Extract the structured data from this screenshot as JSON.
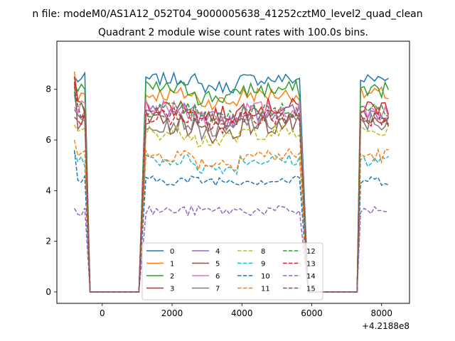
{
  "figure": {
    "suptitle": "n file: modeM0/AS1A12_052T04_9000005638_41252cztM0_level2_quad_clean"
  },
  "chart_data": {
    "type": "line",
    "title": "Quadrant 2 module wise count rates with 100.0s bins.",
    "xlabel": "",
    "ylabel": "",
    "x_offset_label": "+4.2188e8",
    "xlim": [
      -1300,
      8800
    ],
    "ylim": [
      -0.45,
      9.9
    ],
    "xticks": [
      0,
      2000,
      4000,
      6000,
      8000
    ],
    "xtick_labels": [
      "0",
      "2000",
      "4000",
      "6000",
      "8000"
    ],
    "yticks": [
      0,
      2,
      4,
      6,
      8
    ],
    "ytick_labels": [
      "0",
      "2",
      "4",
      "6",
      "8"
    ],
    "grid": false,
    "legend": {
      "location": "lower center",
      "ncol": 4
    },
    "series": [
      {
        "name": "0",
        "color": "#1f77b4",
        "linestyle": "solid",
        "level": 8.4,
        "amp": 0.25,
        "start": 8.5
      },
      {
        "name": "1",
        "color": "#ff7f0e",
        "linestyle": "solid",
        "level": 7.8,
        "amp": 0.3,
        "start": 8.7
      },
      {
        "name": "2",
        "color": "#2ca02c",
        "linestyle": "solid",
        "level": 8.0,
        "amp": 0.35,
        "start": 8.2
      },
      {
        "name": "3",
        "color": "#d62728",
        "linestyle": "solid",
        "level": 7.3,
        "amp": 0.35,
        "start": 8.5
      },
      {
        "name": "4",
        "color": "#9467bd",
        "linestyle": "solid",
        "level": 7.1,
        "amp": 0.35,
        "start": 7.8
      },
      {
        "name": "5",
        "color": "#8c564b",
        "linestyle": "solid",
        "level": 6.6,
        "amp": 0.45,
        "start": 8.3
      },
      {
        "name": "6",
        "color": "#e377c2",
        "linestyle": "solid",
        "level": 7.2,
        "amp": 0.35,
        "start": 7.3
      },
      {
        "name": "7",
        "color": "#7f7f7f",
        "linestyle": "solid",
        "level": 6.7,
        "amp": 0.4,
        "start": 7.2
      },
      {
        "name": "8",
        "color": "#bcbd22",
        "linestyle": "dashed",
        "level": 6.3,
        "amp": 0.3,
        "start": 6.6
      },
      {
        "name": "9",
        "color": "#17becf",
        "linestyle": "dashed",
        "level": 5.2,
        "amp": 0.25,
        "start": 5.5
      },
      {
        "name": "10",
        "color": "#1f77b4",
        "linestyle": "dashed",
        "level": 4.4,
        "amp": 0.2,
        "start": 5.6
      },
      {
        "name": "11",
        "color": "#ff7f0e",
        "linestyle": "dashed",
        "level": 5.4,
        "amp": 0.3,
        "start": 6.0
      },
      {
        "name": "12",
        "color": "#2ca02c",
        "linestyle": "dashed",
        "level": 7.2,
        "amp": 0.3,
        "start": 7.9
      },
      {
        "name": "13",
        "color": "#d62728",
        "linestyle": "dashed",
        "level": 6.9,
        "amp": 0.35,
        "start": 6.9
      },
      {
        "name": "14",
        "color": "#9467bd",
        "linestyle": "dashed",
        "level": 3.2,
        "amp": 0.2,
        "start": 3.3
      },
      {
        "name": "15",
        "color": "#8c564b",
        "linestyle": "dashed",
        "level": 7.0,
        "amp": 0.35,
        "start": 8.1
      }
    ],
    "segments": [
      {
        "state": "on",
        "x": [
          -800,
          -500
        ]
      },
      {
        "state": "off",
        "x": [
          -350,
          1050
        ]
      },
      {
        "state": "on",
        "x": [
          1250,
          5700
        ]
      },
      {
        "state": "off",
        "x": [
          5900,
          7300
        ]
      },
      {
        "state": "on",
        "x": [
          7400,
          8250
        ]
      }
    ]
  }
}
